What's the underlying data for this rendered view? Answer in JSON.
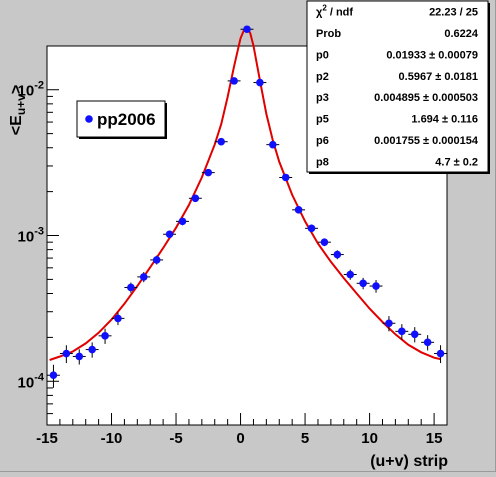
{
  "chart_data": {
    "type": "scatter",
    "title": "",
    "xlabel": "(u+v) strip",
    "ylabel": "<E_{u+v}>",
    "ylabel_main": "<E",
    "ylabel_sub": "u+v",
    "ylabel_end": ">",
    "xlim": [
      -15,
      16
    ],
    "ylim_log10": [
      -4.3,
      -1.7
    ],
    "log_y": true,
    "grid": false,
    "legend_position": "top-left",
    "x_ticks": [
      -15,
      -10,
      -5,
      0,
      5,
      10,
      15
    ],
    "y_ticks": [
      {
        "value": 0.0001,
        "base": "10",
        "exp": "-4"
      },
      {
        "value": 0.001,
        "base": "10",
        "exp": "-3"
      },
      {
        "value": 0.01,
        "base": "10",
        "exp": "-2"
      }
    ],
    "series": [
      {
        "name": "pp2006",
        "kind": "points",
        "color": "#1010ff",
        "x": [
          -14.5,
          -13.5,
          -12.5,
          -11.5,
          -10.5,
          -9.5,
          -8.5,
          -7.5,
          -6.5,
          -5.5,
          -4.5,
          -3.5,
          -2.5,
          -1.5,
          -0.5,
          0.5,
          1.5,
          2.5,
          3.5,
          4.5,
          5.5,
          6.5,
          7.5,
          8.5,
          9.5,
          10.5,
          11.5,
          12.5,
          13.5,
          14.5,
          15.5
        ],
        "y": [
          0.00011,
          0.000155,
          0.000148,
          0.000165,
          0.000205,
          0.00027,
          0.00044,
          0.00052,
          0.00068,
          0.00102,
          0.00125,
          0.0018,
          0.0027,
          0.0044,
          0.0115,
          0.026,
          0.0112,
          0.0042,
          0.0025,
          0.0015,
          0.00112,
          0.0009,
          0.00074,
          0.00054,
          0.00047,
          0.00045,
          0.00025,
          0.00022,
          0.00021,
          0.000185,
          0.000155
        ],
        "yerr_rel": [
          0.18,
          0.14,
          0.12,
          0.12,
          0.12,
          0.1,
          0.08,
          0.08,
          0.07,
          0.06,
          0.06,
          0.05,
          0.04,
          0.04,
          0.03,
          0.03,
          0.03,
          0.04,
          0.04,
          0.05,
          0.06,
          0.06,
          0.07,
          0.08,
          0.09,
          0.1,
          0.12,
          0.12,
          0.12,
          0.12,
          0.14
        ]
      },
      {
        "name": "fit",
        "kind": "line",
        "color": "#e00000",
        "x": [
          -14.8,
          -14,
          -13,
          -12,
          -11,
          -10,
          -9,
          -8,
          -7,
          -6,
          -5,
          -4,
          -3,
          -2,
          -1.5,
          -1,
          -0.5,
          0,
          0.25,
          0.5,
          0.75,
          1,
          1.5,
          2,
          2.5,
          3,
          4,
          5,
          6,
          7,
          8,
          9,
          10,
          11,
          12,
          13,
          14,
          15,
          15.5
        ],
        "y": [
          0.00014,
          0.000148,
          0.00016,
          0.000182,
          0.000215,
          0.000265,
          0.00034,
          0.00045,
          0.000605,
          0.00082,
          0.00113,
          0.00162,
          0.0025,
          0.0042,
          0.0058,
          0.0089,
          0.0145,
          0.0225,
          0.0255,
          0.0265,
          0.0245,
          0.02,
          0.0116,
          0.0068,
          0.0045,
          0.0032,
          0.0019,
          0.00125,
          0.00088,
          0.00066,
          0.00051,
          0.0004,
          0.000315,
          0.000255,
          0.00021,
          0.000178,
          0.000158,
          0.000145,
          0.000142
        ]
      }
    ],
    "stats_box": {
      "position": "top-right",
      "rows": [
        {
          "label_main": "χ",
          "label_sup": "2",
          "label_rest": " / ndf",
          "value": "22.23 / 25"
        },
        {
          "label_main": "Prob",
          "label_sup": "",
          "label_rest": "",
          "value": "0.6224"
        },
        {
          "label_main": "p0",
          "label_sup": "",
          "label_rest": "",
          "value": "0.01933 ± 0.00079"
        },
        {
          "label_main": "p2",
          "label_sup": "",
          "label_rest": "",
          "value": "0.5967 ± 0.0181"
        },
        {
          "label_main": "p3",
          "label_sup": "",
          "label_rest": "",
          "value": "0.004895 ± 0.000503"
        },
        {
          "label_main": "p5",
          "label_sup": "",
          "label_rest": "",
          "value": "1.694 ± 0.116"
        },
        {
          "label_main": "p6",
          "label_sup": "",
          "label_rest": "",
          "value": "0.001755 ± 0.000154"
        },
        {
          "label_main": "p8",
          "label_sup": "",
          "label_rest": "",
          "value": "4.7 ± 0.2"
        }
      ]
    },
    "colors": {
      "canvas_bg": "#c8c8c8",
      "frame_bg": "#ffffff",
      "points": "#1010ff",
      "fit": "#e00000"
    }
  }
}
